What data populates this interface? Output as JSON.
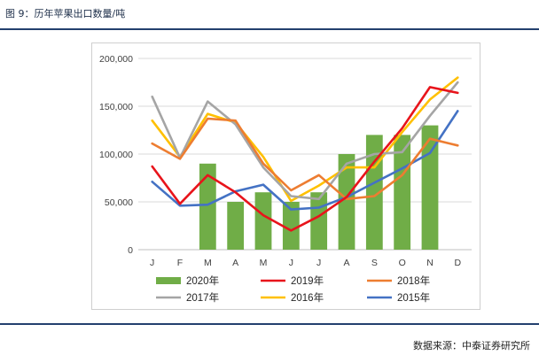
{
  "figure": {
    "title": "图 9：历年苹果出口数量/吨"
  },
  "source": {
    "text": "数据来源：中泰证券研究所"
  },
  "chart_data": {
    "type": "bar+line",
    "categories": [
      "J",
      "F",
      "M",
      "A",
      "M",
      "J",
      "J",
      "A",
      "S",
      "O",
      "N",
      "D"
    ],
    "yticks": [
      "0",
      "50,000",
      "100,000",
      "150,000",
      "200,000"
    ],
    "ylim": [
      0,
      200000
    ],
    "grid": true,
    "legend_position": "bottom",
    "series": [
      {
        "name": "2020年",
        "kind": "bar",
        "color": "#70ad47",
        "values": [
          null,
          null,
          90000,
          50000,
          60000,
          50000,
          60000,
          100000,
          120000,
          120000,
          130000,
          null
        ]
      },
      {
        "name": "2019年",
        "kind": "line",
        "color": "#e8141b",
        "values": [
          87000,
          48000,
          78000,
          60000,
          36000,
          20000,
          35000,
          55000,
          92000,
          127000,
          170000,
          164000
        ]
      },
      {
        "name": "2018年",
        "kind": "line",
        "color": "#ed7d31",
        "values": [
          111000,
          95000,
          137000,
          135000,
          90000,
          62000,
          78000,
          53000,
          56000,
          78000,
          116000,
          109000
        ]
      },
      {
        "name": "2017年",
        "kind": "line",
        "color": "#a5a5a5",
        "values": [
          160000,
          96000,
          155000,
          131000,
          86000,
          56000,
          53000,
          90000,
          100000,
          102000,
          140000,
          175000
        ]
      },
      {
        "name": "2016年",
        "kind": "line",
        "color": "#ffc000",
        "values": [
          135000,
          97000,
          142000,
          133000,
          97000,
          51000,
          67000,
          86000,
          86000,
          123000,
          157000,
          180000
        ]
      },
      {
        "name": "2015年",
        "kind": "line",
        "color": "#4472c4",
        "values": [
          71000,
          46000,
          47000,
          61000,
          68000,
          42000,
          44000,
          55000,
          70000,
          85000,
          101000,
          145000
        ]
      }
    ]
  }
}
